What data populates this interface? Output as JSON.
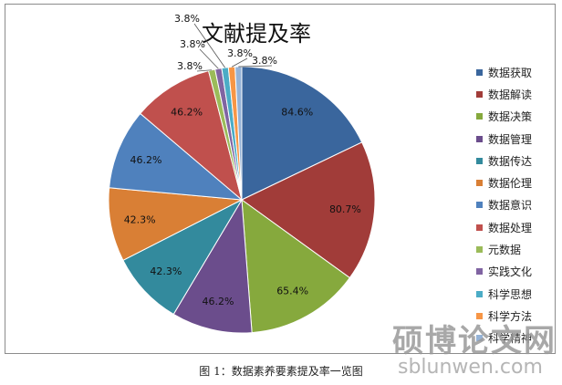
{
  "chart_data": {
    "type": "pie",
    "title": "文献提及率",
    "categories": [
      "数据获取",
      "数据解读",
      "数据决策",
      "数据管理",
      "数据传达",
      "数据伦理",
      "数据意识",
      "数据处理",
      "元数据",
      "实践文化",
      "科学思想",
      "科学方法",
      "科学精神"
    ],
    "values": [
      84.6,
      80.7,
      65.4,
      46.2,
      42.3,
      42.3,
      46.2,
      46.2,
      3.8,
      3.8,
      3.8,
      3.8,
      3.8
    ],
    "data_labels": [
      "84.6%",
      "80.7%",
      "65.4%",
      "46.2%",
      "42.3%",
      "42.3%",
      "46.2%",
      "46.2%",
      "3.8%",
      "3.8%",
      "3.8%",
      "3.8%",
      "3.8%"
    ],
    "colors": [
      "#3A669D",
      "#A13C39",
      "#86A93D",
      "#6B4D8C",
      "#338A9D",
      "#D97F35",
      "#4F81BD",
      "#C0504D",
      "#9BBB59",
      "#8064A2",
      "#4BACC6",
      "#F79646",
      "#95B3D7"
    ],
    "legend_position": "right"
  },
  "caption": "图 1：数据素养要素提及率一览图",
  "watermark": {
    "chinese": "硕博论文网",
    "english": "sblunwen.com"
  }
}
